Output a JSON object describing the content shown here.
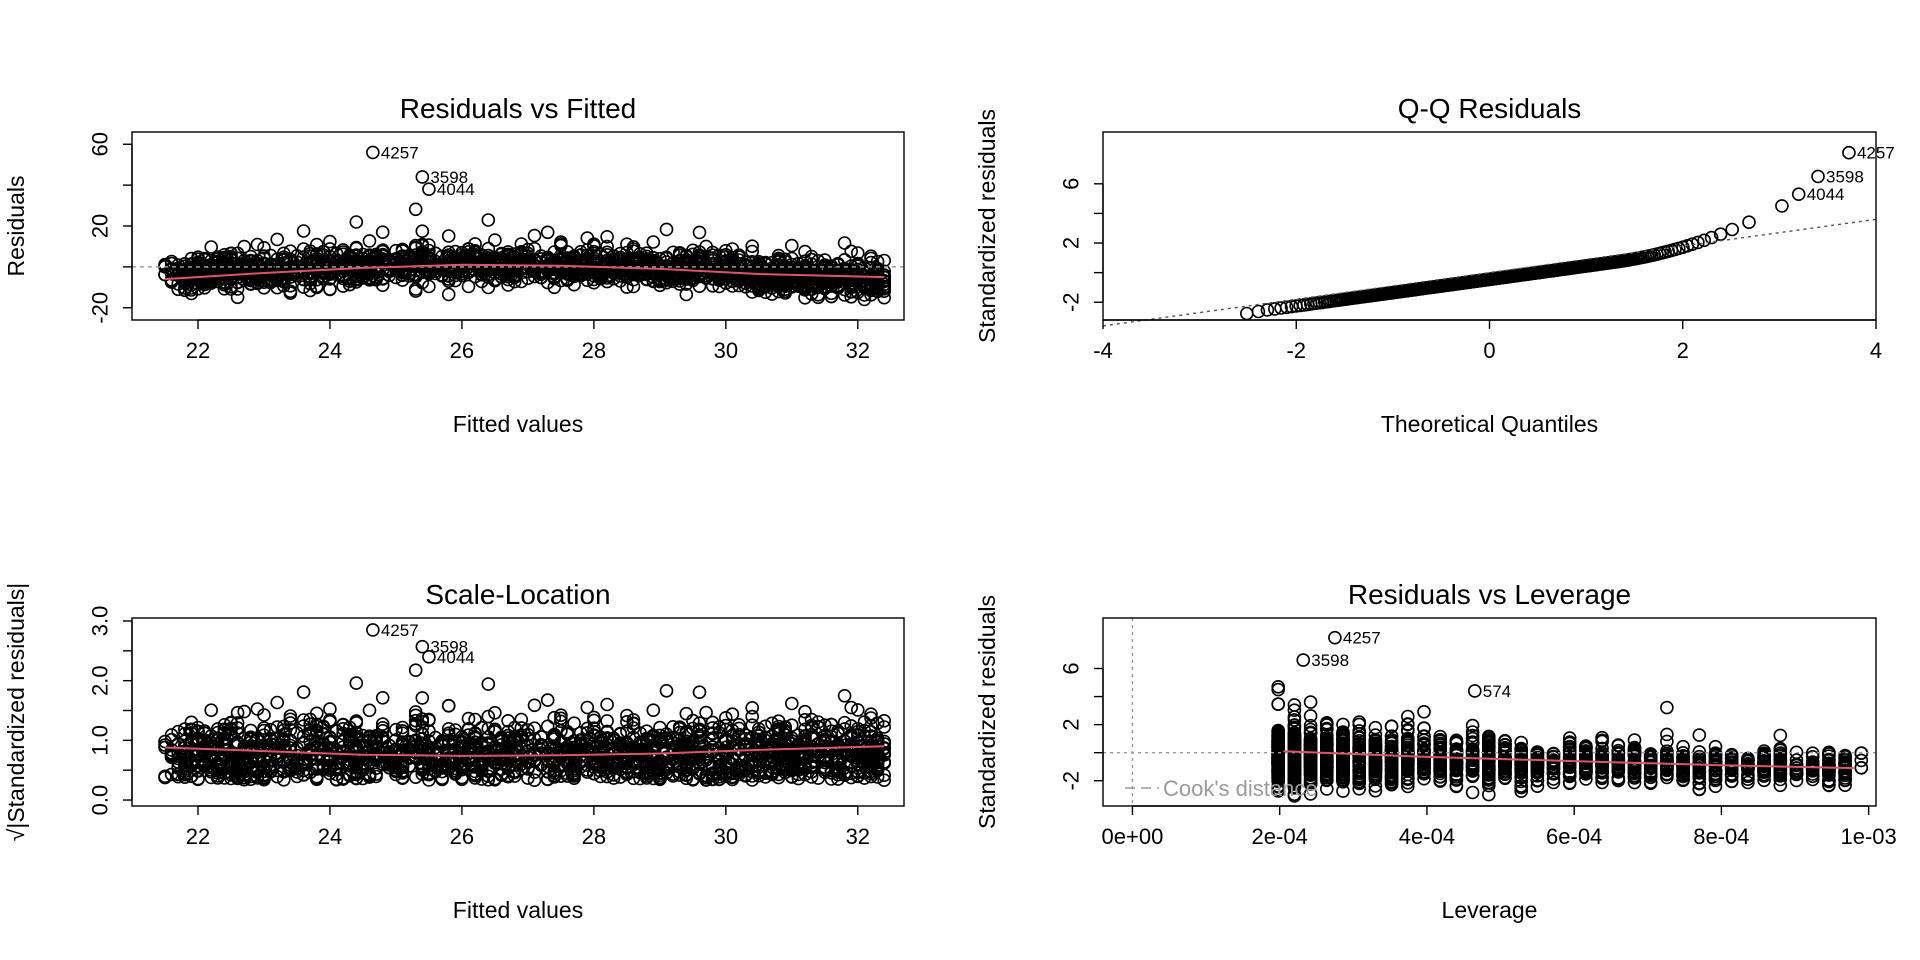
{
  "colors": {
    "points": "#000000",
    "smooth": "#df536b",
    "ref": "#9a9a9a",
    "qqline": "#555555"
  },
  "chart_data": [
    {
      "id": "resid-fitted",
      "type": "scatter",
      "title": "Residuals vs Fitted",
      "xlabel": "Fitted values",
      "ylabel": "Residuals",
      "xlim": [
        21.0,
        32.7
      ],
      "ylim": [
        -26,
        66
      ],
      "xticks": [
        22,
        24,
        26,
        28,
        30,
        32
      ],
      "xtick_labels": [
        "22",
        "24",
        "26",
        "28",
        "30",
        "32"
      ],
      "yticks": [
        -20,
        20,
        60
      ],
      "ytick_labels": [
        "-20",
        "20",
        "60"
      ],
      "hline": 0,
      "smooth": {
        "x": [
          21.5,
          23,
          24.5,
          26,
          27.5,
          29,
          30.5,
          32.4
        ],
        "y": [
          -6,
          -3,
          -0.5,
          1,
          0.5,
          -1,
          -3.5,
          -5
        ]
      },
      "annotations": [
        {
          "label": "4257",
          "x": 24.65,
          "y": 56
        },
        {
          "label": "3598",
          "x": 25.4,
          "y": 44
        },
        {
          "label": "4044",
          "x": 25.5,
          "y": 38
        }
      ]
    },
    {
      "id": "qq",
      "type": "scatter",
      "title": "Q-Q Residuals",
      "xlabel": "Theoretical Quantiles",
      "ylabel": "Standardized residuals",
      "xlim": [
        -4,
        4
      ],
      "ylim": [
        -3.2,
        9.5
      ],
      "xticks": [
        -4,
        -2,
        0,
        2,
        4
      ],
      "xtick_labels": [
        "-4",
        "-2",
        "0",
        "2",
        "4"
      ],
      "yticks": [
        -2,
        2,
        6
      ],
      "ytick_labels": [
        "-2",
        "2",
        "6"
      ],
      "refline": {
        "x": [
          -4,
          4
        ],
        "y": [
          -3.6,
          3.6
        ]
      },
      "annotations": [
        {
          "label": "4257",
          "x": 3.72,
          "y": 8.1
        },
        {
          "label": "3598",
          "x": 3.4,
          "y": 6.5
        },
        {
          "label": "4044",
          "x": 3.2,
          "y": 5.3
        }
      ]
    },
    {
      "id": "scale-location",
      "type": "scatter",
      "title": "Scale-Location",
      "xlabel": "Fitted values",
      "ylabel": "√|Standardized residuals|",
      "xlim": [
        21.0,
        32.7
      ],
      "ylim": [
        -0.1,
        3.05
      ],
      "xticks": [
        22,
        24,
        26,
        28,
        30,
        32
      ],
      "xtick_labels": [
        "22",
        "24",
        "26",
        "28",
        "30",
        "32"
      ],
      "yticks": [
        0.0,
        1.0,
        2.0,
        3.0
      ],
      "ytick_labels": [
        "0.0",
        "1.0",
        "2.0",
        "3.0"
      ],
      "smooth": {
        "x": [
          21.5,
          23,
          24.5,
          26,
          27.5,
          29,
          30.5,
          32.4
        ],
        "y": [
          0.88,
          0.82,
          0.76,
          0.74,
          0.75,
          0.78,
          0.84,
          0.9
        ]
      },
      "annotations": [
        {
          "label": "4257",
          "x": 24.65,
          "y": 2.85
        },
        {
          "label": "3598",
          "x": 25.4,
          "y": 2.57
        },
        {
          "label": "4044",
          "x": 25.5,
          "y": 2.4
        }
      ]
    },
    {
      "id": "resid-leverage",
      "type": "scatter",
      "title": "Residuals vs Leverage",
      "xlabel": "Leverage",
      "ylabel": "Standardized residuals",
      "xlim": [
        -4e-05,
        0.00101
      ],
      "ylim": [
        -3.8,
        9.6
      ],
      "xticks": [
        0,
        0.0002,
        0.0004,
        0.0006,
        0.0008,
        0.001
      ],
      "xtick_labels": [
        "0e+00",
        "2e-04",
        "4e-04",
        "6e-04",
        "8e-04",
        "1e-03"
      ],
      "yticks": [
        -2,
        2,
        6
      ],
      "ytick_labels": [
        "-2",
        "2",
        "6"
      ],
      "hline": 0,
      "vline": 0,
      "smooth": {
        "x": [
          0.000205,
          0.0004,
          0.0006,
          0.0008,
          0.00098
        ],
        "y": [
          0.1,
          -0.3,
          -0.6,
          -0.9,
          -1.1
        ]
      },
      "legend": {
        "label": "Cook's distance",
        "position": "bottom-left"
      },
      "annotations": [
        {
          "label": "4257",
          "x": 0.000275,
          "y": 8.2
        },
        {
          "label": "3598",
          "x": 0.000232,
          "y": 6.6
        },
        {
          "label": "574",
          "x": 0.000465,
          "y": 4.4
        }
      ]
    }
  ]
}
